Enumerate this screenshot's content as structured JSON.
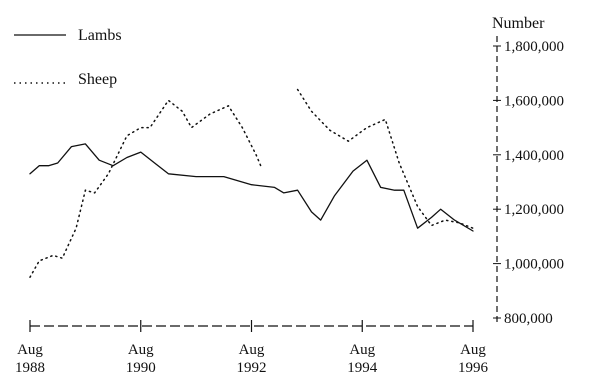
{
  "chart_data": {
    "type": "line",
    "ylabel": "Number",
    "ylim": [
      800000,
      1800000
    ],
    "yticks": [
      800000,
      1000000,
      1200000,
      1400000,
      1600000,
      1800000
    ],
    "ytick_labels": [
      "800,000",
      "1,000,000",
      "1,200,000",
      "1,400,000",
      "1,600,000",
      "1,800,000"
    ],
    "xlim": [
      "1988-08",
      "1996-08"
    ],
    "x_ticks": [
      {
        "month": "Aug",
        "year": "1988",
        "date": "1988-08"
      },
      {
        "month": "Aug",
        "year": "1990",
        "date": "1990-08"
      },
      {
        "month": "Aug",
        "year": "1992",
        "date": "1992-08"
      },
      {
        "month": "Aug",
        "year": "1994",
        "date": "1994-08"
      },
      {
        "month": "Aug",
        "year": "1996",
        "date": "1996-08"
      }
    ],
    "legend_position": "top-left",
    "grid": false,
    "series": [
      {
        "name": "Lambs",
        "style": "solid",
        "color": "#111111",
        "points": [
          [
            "1988-08",
            1330000
          ],
          [
            "1988-10",
            1360000
          ],
          [
            "1988-12",
            1360000
          ],
          [
            "1989-02",
            1370000
          ],
          [
            "1989-05",
            1430000
          ],
          [
            "1989-08",
            1440000
          ],
          [
            "1989-11",
            1380000
          ],
          [
            "1990-02",
            1360000
          ],
          [
            "1990-05",
            1390000
          ],
          [
            "1990-08",
            1410000
          ],
          [
            "1990-11",
            1370000
          ],
          [
            "1991-02",
            1330000
          ],
          [
            "1991-08",
            1320000
          ],
          [
            "1992-02",
            1320000
          ],
          [
            "1992-08",
            1290000
          ],
          [
            "1993-01",
            1280000
          ],
          [
            "1993-03",
            1260000
          ],
          [
            "1993-06",
            1270000
          ],
          [
            "1993-09",
            1190000
          ],
          [
            "1993-11",
            1160000
          ],
          [
            "1994-02",
            1250000
          ],
          [
            "1994-06",
            1340000
          ],
          [
            "1994-09",
            1380000
          ],
          [
            "1994-12",
            1280000
          ],
          [
            "1995-03",
            1270000
          ],
          [
            "1995-05",
            1270000
          ],
          [
            "1995-08",
            1130000
          ],
          [
            "1995-11",
            1170000
          ],
          [
            "1996-01",
            1200000
          ],
          [
            "1996-04",
            1160000
          ],
          [
            "1996-08",
            1120000
          ]
        ]
      },
      {
        "name": "Sheep",
        "style": "dotted",
        "color": "#111111",
        "points": [
          [
            "1988-08",
            950000
          ],
          [
            "1988-10",
            1010000
          ],
          [
            "1989-01",
            1030000
          ],
          [
            "1989-03",
            1020000
          ],
          [
            "1989-06",
            1130000
          ],
          [
            "1989-08",
            1270000
          ],
          [
            "1989-10",
            1260000
          ],
          [
            "1990-01",
            1330000
          ],
          [
            "1990-05",
            1470000
          ],
          [
            "1990-08",
            1500000
          ],
          [
            "1990-10",
            1500000
          ],
          [
            "1991-02",
            1600000
          ],
          [
            "1991-05",
            1560000
          ],
          [
            "1991-07",
            1500000
          ],
          [
            "1991-11",
            1550000
          ],
          [
            "1992-03",
            1580000
          ],
          [
            "1992-06",
            1500000
          ],
          [
            "1992-09",
            1400000
          ],
          [
            "1992-10",
            1360000
          ],
          [
            "1993-02",
            null
          ],
          [
            "1993-06",
            1640000
          ],
          [
            "1993-09",
            1560000
          ],
          [
            "1994-01",
            1490000
          ],
          [
            "1994-05",
            1450000
          ],
          [
            "1994-09",
            1500000
          ],
          [
            "1995-01",
            1530000
          ],
          [
            "1995-04",
            1370000
          ],
          [
            "1995-08",
            1210000
          ],
          [
            "1995-11",
            1140000
          ],
          [
            "1996-02",
            1160000
          ],
          [
            "1996-05",
            1150000
          ],
          [
            "1996-08",
            1130000
          ]
        ]
      }
    ]
  }
}
